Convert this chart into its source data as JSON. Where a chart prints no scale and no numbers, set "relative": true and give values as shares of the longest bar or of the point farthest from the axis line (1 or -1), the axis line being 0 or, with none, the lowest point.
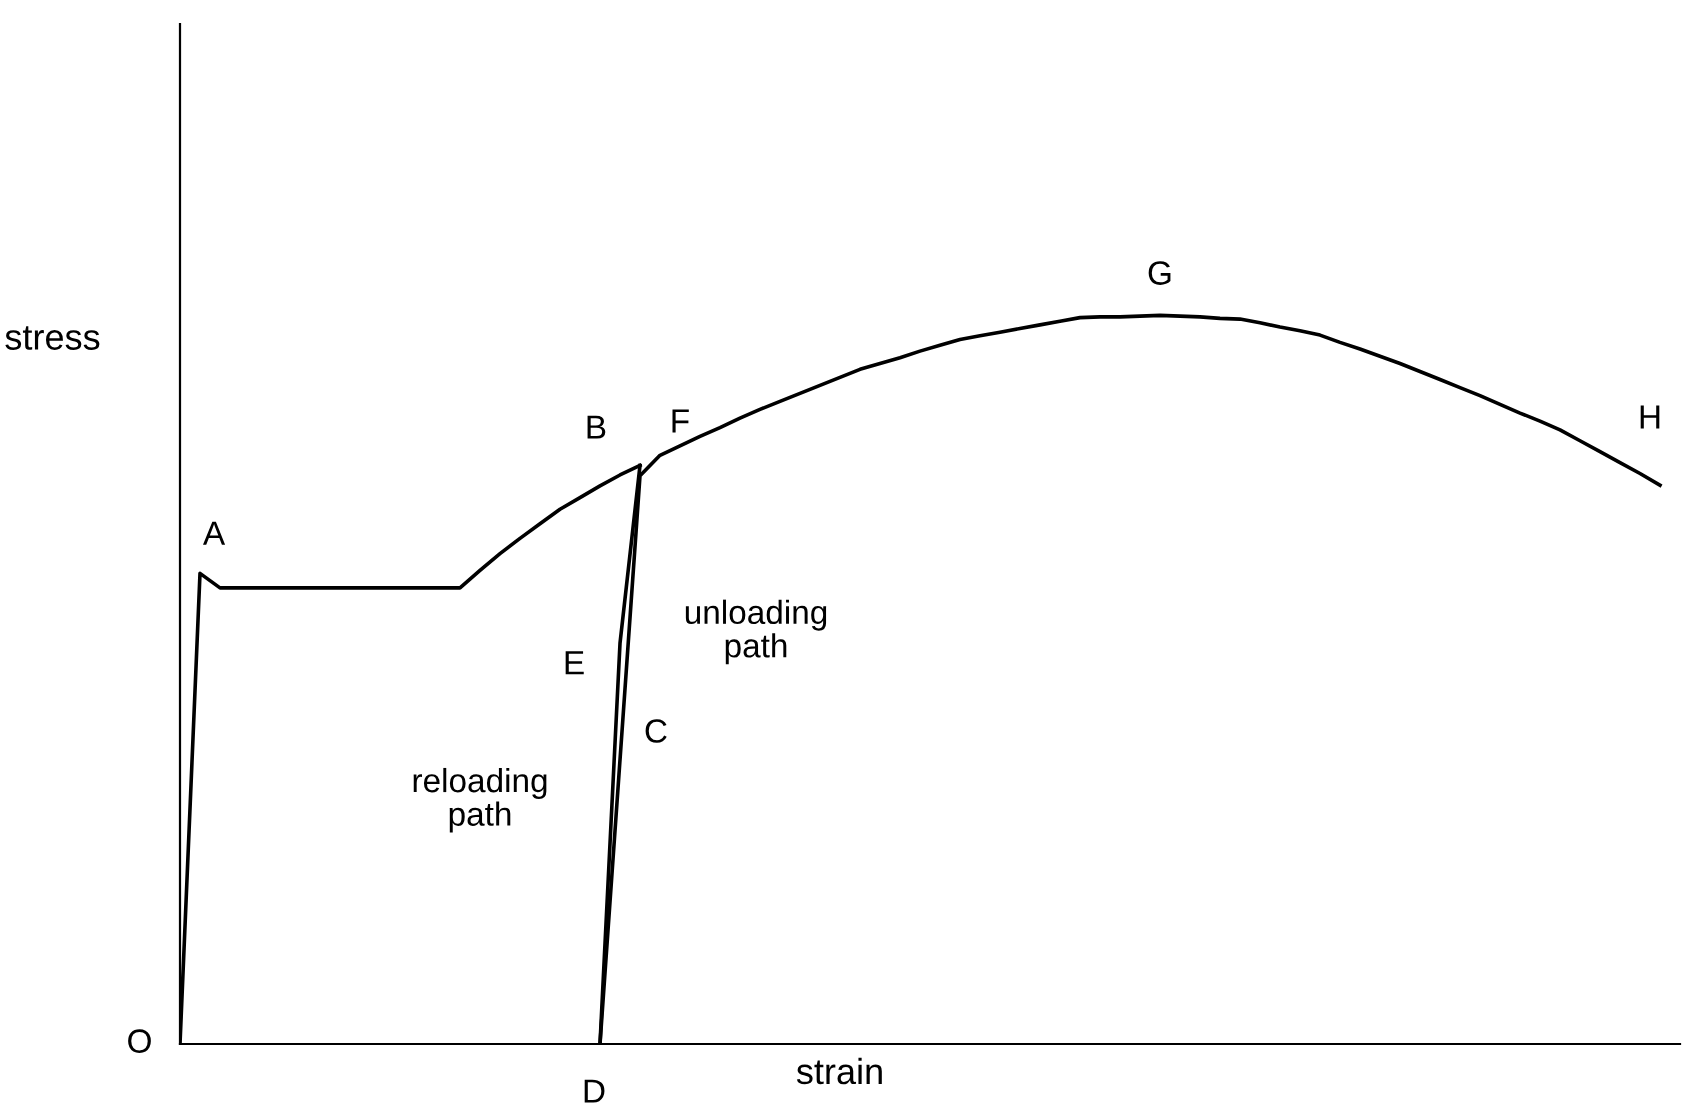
{
  "chart_data": {
    "type": "line",
    "relative": true,
    "xlabel": "strain",
    "ylabel": "stress",
    "categories": [
      null,
      null,
      null,
      null,
      null,
      null,
      null,
      null,
      null,
      null,
      null,
      null,
      null,
      null,
      null,
      null,
      null,
      null,
      null,
      null,
      null,
      null,
      null,
      null,
      null,
      null,
      null,
      null,
      null,
      null,
      null,
      null,
      null,
      null,
      null,
      null,
      null,
      null,
      null,
      null,
      null,
      null,
      null,
      null,
      null,
      null,
      null,
      null,
      null,
      null,
      null,
      null,
      null,
      null,
      null,
      null,
      null,
      null,
      null,
      null,
      null,
      null,
      null,
      null,
      null,
      null,
      null,
      null,
      null,
      null,
      null,
      null,
      null,
      null,
      null,
      null
    ],
    "series": [
      {
        "color": "#000000",
        "values": [
          0,
          0.646,
          0.626,
          0.626,
          0.626,
          0.626,
          0.626,
          0.626,
          0.626,
          0.626,
          0.626,
          0.626,
          0.626,
          0.626,
          0.626,
          0.65,
          0.673,
          0.694,
          0.714,
          0.734,
          0.75,
          0.766,
          0.781,
          0.794,
          null,
          null,
          null,
          null,
          null,
          null,
          null,
          null,
          null,
          null,
          null,
          null,
          null,
          null,
          null,
          null,
          null,
          null,
          null,
          null,
          null,
          null,
          null,
          null,
          null,
          null,
          null,
          null,
          null,
          null,
          null,
          null,
          null,
          null,
          null,
          null,
          null,
          null,
          null,
          null,
          null,
          null,
          null,
          null,
          null,
          null,
          null,
          null,
          null,
          null,
          null,
          null
        ]
      },
      {
        "color": "#000000",
        "values": [
          null,
          null,
          null,
          null,
          null,
          null,
          null,
          null,
          null,
          null,
          null,
          null,
          null,
          null,
          null,
          null,
          null,
          null,
          null,
          null,
          null,
          0,
          0.55,
          0.794,
          null,
          null,
          null,
          null,
          null,
          null,
          null,
          null,
          null,
          null,
          null,
          null,
          null,
          null,
          null,
          null,
          null,
          null,
          null,
          null,
          null,
          null,
          null,
          null,
          null,
          null,
          null,
          null,
          null,
          null,
          null,
          null,
          null,
          null,
          null,
          null,
          null,
          null,
          null,
          null,
          null,
          null,
          null,
          null,
          null,
          null,
          null,
          null,
          null,
          null,
          null,
          null
        ]
      },
      {
        "color": "#000000",
        "values": [
          null,
          null,
          null,
          null,
          null,
          null,
          null,
          null,
          null,
          null,
          null,
          null,
          null,
          null,
          null,
          null,
          null,
          null,
          null,
          null,
          null,
          0,
          0.39,
          0.78,
          0.808,
          0.821,
          0.834,
          0.846,
          0.859,
          0.871,
          0.882,
          0.893,
          0.904,
          0.915,
          0.926,
          0.934,
          0.942,
          0.951,
          0.959,
          0.967,
          0.972,
          0.977,
          0.982,
          0.987,
          0.992,
          0.997,
          0.998,
          0.998,
          0.999,
          1,
          0.999,
          0.998,
          0.996,
          0.995,
          0.99,
          0.984,
          0.979,
          0.973,
          0.963,
          0.954,
          0.944,
          0.934,
          0.923,
          0.912,
          0.901,
          0.89,
          0.878,
          0.866,
          0.855,
          0.843,
          0.828,
          0.813,
          0.798,
          0.783,
          0.767,
          null
        ]
      }
    ],
    "annotations": [
      "O",
      "A",
      "B",
      "F",
      "G",
      "H",
      "E",
      "C",
      "unloading\npath",
      "reloading\npath",
      "D"
    ]
  }
}
